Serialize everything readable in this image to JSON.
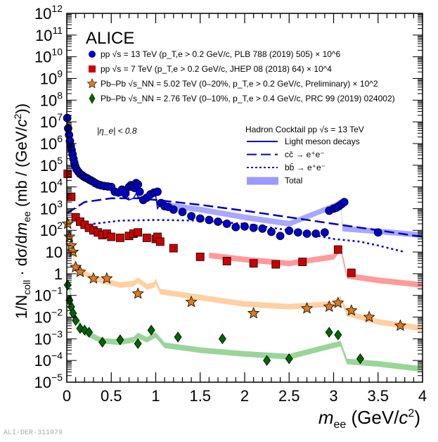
{
  "chart_data": {
    "type": "scatter",
    "title": "ALICE",
    "xlabel": "m_ee (GeV/c^2)",
    "ylabel": "1/N_coll · dσ/dm_ee (mb / (GeV/c^2))",
    "xlim": [
      0,
      4
    ],
    "ylim": [
      1e-05,
      1000000000000.0
    ],
    "yscale": "log",
    "x_ticks": [
      "0",
      "0.5",
      "1",
      "1.5",
      "2",
      "2.5",
      "3",
      "3.5",
      "4"
    ],
    "x_tick_values": [
      0,
      0.5,
      1,
      1.5,
      2,
      2.5,
      3,
      3.5,
      4
    ],
    "y_ticks": [
      "10^-5",
      "10^-4",
      "10^-3",
      "10^-2",
      "10^-1",
      "1",
      "10",
      "10^2",
      "10^3",
      "10^4",
      "10^5",
      "10^6",
      "10^7",
      "10^8",
      "10^9",
      "10^10",
      "10^11",
      "10^12"
    ],
    "y_tick_exps": [
      -5,
      -4,
      -3,
      -2,
      -1,
      0,
      1,
      2,
      3,
      4,
      5,
      6,
      7,
      8,
      9,
      10,
      11,
      12
    ],
    "annotation": "|η_e| < 0.8",
    "legend_position": "top",
    "series": [
      {
        "name": "pp √s = 13 TeV (p_T,e > 0.2 GeV/c, PLB 788 (2019) 505) × 10^6",
        "marker": "circle",
        "color": "#0000cc",
        "x": [
          0.005,
          0.015,
          0.025,
          0.035,
          0.045,
          0.055,
          0.065,
          0.075,
          0.085,
          0.095,
          0.11,
          0.13,
          0.15,
          0.17,
          0.19,
          0.21,
          0.23,
          0.25,
          0.27,
          0.29,
          0.32,
          0.35,
          0.38,
          0.42,
          0.46,
          0.5,
          0.54,
          0.58,
          0.62,
          0.66,
          0.7,
          0.72,
          0.74,
          0.76,
          0.78,
          0.8,
          0.82,
          0.86,
          0.9,
          0.94,
          0.98,
          1.02,
          1.06,
          1.1,
          1.14,
          1.2,
          1.3,
          1.4,
          1.5,
          1.6,
          1.7,
          1.8,
          1.9,
          2.0,
          2.1,
          2.2,
          2.3,
          2.4,
          2.5,
          2.6,
          2.7,
          2.8,
          2.9,
          2.95,
          3.0,
          3.03,
          3.06,
          3.09,
          3.12,
          3.5
        ],
        "y": [
          15000000.0,
          5000000.0,
          2500000.0,
          1300000.0,
          800000.0,
          500000.0,
          320000.0,
          200000.0,
          130000.0,
          90000.0,
          65000.0,
          50000.0,
          40000.0,
          35000.0,
          30000.0,
          27000.0,
          25000.0,
          22000.0,
          20000.0,
          18000.0,
          15000.0,
          13000.0,
          12000.0,
          11000.0,
          10500.0,
          10000.0,
          6000.0,
          5500.0,
          7500.0,
          5000.0,
          10000.0,
          12000.0,
          11000.0,
          9000.0,
          15000.0,
          13000.0,
          6000.0,
          2500.0,
          3200.0,
          4500.0,
          5500.0,
          6000.0,
          1800.0,
          1300.0,
          1200.0,
          900.0,
          700.0,
          450.0,
          350.0,
          300.0,
          250.0,
          200.0,
          140.0,
          150.0,
          130.0,
          120.0,
          85,
          55,
          95,
          80,
          70,
          70,
          80,
          800,
          1000,
          1100,
          1300,
          1600,
          2000,
          80
        ]
      },
      {
        "name": "pp √s = 7 TeV (p_T,e > 0.2 GeV/c, JHEP 08 (2018) 64) × 10^4",
        "marker": "square",
        "color": "#cc0000",
        "x": [
          0.01,
          0.05,
          0.1,
          0.15,
          0.2,
          0.25,
          0.3,
          0.35,
          0.4,
          0.45,
          0.5,
          0.6,
          0.7,
          0.75,
          0.8,
          0.9,
          1.0,
          1.02,
          1.05,
          1.2,
          1.5,
          1.8,
          2.1,
          2.35,
          2.65,
          3.05,
          3.2
        ],
        "y": [
          40000.0,
          3500.0,
          400.0,
          250.0,
          180.0,
          130.0,
          100.0,
          80.0,
          60.0,
          70.0,
          50.0,
          45.0,
          55.0,
          70.0,
          80.0,
          45.0,
          40.0,
          50.0,
          30.0,
          15.0,
          6,
          3.8,
          3,
          2.7,
          3.5,
          13,
          1.1
        ]
      },
      {
        "name": "Pb–Pb √s_NN = 5.02 TeV (0–20%, p_T,e > 0.2 GeV/c, Preliminary) × 10^2",
        "marker": "star",
        "color": "#e07b1a",
        "x": [
          0.01,
          0.03,
          0.05,
          0.07,
          0.1,
          0.15,
          0.3,
          0.45,
          0.8,
          1.4,
          2.1,
          2.7,
          2.95,
          3.05,
          3.2,
          3.4,
          3.75
        ],
        "y": [
          200.0,
          50.0,
          20.0,
          10.0,
          2.0,
          1.2,
          0.6,
          0.6,
          0.12,
          0.05,
          0.015,
          0.025,
          0.03,
          0.045,
          0.02,
          0.01,
          0.004
        ]
      },
      {
        "name": "Pb–Pb √s_NN = 2.76 TeV (0–10%, p_T,e > 0.4 GeV/c, PRC 99 (2019) 024002)",
        "marker": "diamond",
        "color": "#006600",
        "x": [
          0.01,
          0.03,
          0.05,
          0.07,
          0.1,
          0.15,
          0.2,
          0.25,
          0.4,
          0.6,
          0.8,
          0.95,
          1.25,
          1.75,
          2.25,
          2.5,
          2.95,
          3.05,
          3.3
        ],
        "y": [
          0.3,
          0.06,
          0.03,
          0.015,
          0.007,
          0.003,
          0.0025,
          0.002,
          0.0007,
          0.0009,
          0.0006,
          0.0025,
          0.0012,
          0.001,
          0.0001,
          0.00012,
          0.002,
          0.0015,
          0.00012
        ]
      }
    ],
    "cocktail": {
      "title": "Hadron Cocktail pp √s = 13 TeV",
      "components": [
        {
          "name": "Light meson decays",
          "style": "solid",
          "color": "#0000cc",
          "x": [
            0.05,
            0.1,
            0.2,
            0.3,
            0.4,
            0.5,
            0.6,
            0.65,
            0.7,
            0.75,
            0.78,
            0.8,
            0.9,
            0.95,
            0.98,
            1.0,
            1.02,
            1.05,
            1.1
          ],
          "y": [
            500000.0,
            100000.0,
            30000.0,
            20000.0,
            15000.0,
            10000.0,
            5000.0,
            3000.0,
            2500.0,
            3000.0,
            5000.0,
            3500.0,
            2500.0,
            5000.0,
            7000.0,
            4000.0,
            1000.0,
            1500.0,
            1200.0
          ]
        },
        {
          "name": "cc̄ → e⁺e⁻",
          "style": "dashed",
          "color": "#0000cc",
          "x": [
            0,
            0.2,
            0.5,
            0.8,
            1.0,
            1.5,
            2.0,
            2.5,
            3.0,
            3.5,
            4.0
          ],
          "y": [
            600.0,
            2000.0,
            3000.0,
            3000.0,
            2500.0,
            1500.0,
            800.0,
            400.0,
            200.0,
            100.0,
            50.0
          ]
        },
        {
          "name": "bb̄ → e⁺e⁻",
          "style": "dotted",
          "color": "#0000cc",
          "x": [
            0.3,
            0.6,
            1.0,
            1.5,
            2.0,
            2.5,
            3.0,
            3.3,
            3.5,
            3.8
          ],
          "y": [
            200.0,
            280.0,
            300.0,
            280.0,
            200.0,
            100.0,
            40.0,
            30.0,
            20.0,
            10.0
          ]
        },
        {
          "name": "Total",
          "style": "band",
          "color": "#9999ff"
        }
      ]
    },
    "bands": [
      {
        "series": "pp 13 TeV total",
        "color": "#9999ff",
        "x": [
          1.1,
          1.5,
          2.0,
          2.5,
          3.0,
          3.08,
          3.1,
          3.5,
          4.0
        ],
        "y": [
          1500.0,
          900.0,
          400.0,
          200.0,
          1300.0,
          2000.0,
          120.0,
          90.0,
          60.0
        ]
      },
      {
        "series": "pp 7 TeV cocktail",
        "color": "#ff8888",
        "x": [
          1.6,
          2.0,
          2.5,
          3.0,
          3.08,
          3.15,
          3.5,
          4.0
        ],
        "y": [
          7,
          4.5,
          3,
          6,
          14,
          0.8,
          0.5,
          0.3
        ]
      },
      {
        "series": "Pb-Pb 5.02 cocktail",
        "color": "#ffc890",
        "x": [
          0.02,
          0.1,
          0.3,
          0.6,
          0.75,
          0.8,
          0.9,
          0.98,
          1.0,
          1.05,
          1.5,
          2.0,
          2.5,
          3.0,
          3.08,
          3.15,
          3.5,
          4.0
        ],
        "y": [
          100,
          2,
          0.6,
          0.3,
          0.35,
          0.5,
          0.25,
          0.3,
          0.45,
          0.15,
          0.08,
          0.04,
          0.03,
          0.04,
          0.07,
          0.015,
          0.006,
          0.003
        ]
      },
      {
        "series": "Pb-Pb 2.76 cocktail",
        "color": "#88cc88",
        "x": [
          0.02,
          0.1,
          0.2,
          0.4,
          0.6,
          0.75,
          0.8,
          0.9,
          1.0,
          1.1,
          1.5,
          2.0,
          2.5,
          3.0,
          3.08,
          3.15,
          3.5,
          4.0
        ],
        "y": [
          0.3,
          0.01,
          0.002,
          0.0008,
          0.0007,
          0.0009,
          0.0014,
          0.0009,
          0.0015,
          0.0005,
          0.0003,
          0.0002,
          0.00015,
          0.0005,
          0.0006,
          9e-05,
          7e-05,
          4e-05
        ]
      }
    ]
  },
  "watermark": "ALI-DER-311979",
  "legend": {
    "title": "ALICE",
    "entries": [
      {
        "pre": "pp √",
        "sym": "s",
        "rest": " = 13 TeV (p",
        "sub": "T,e",
        "post": " > 0.2 GeV/c, PLB 788 (2019) 505) × 10",
        "sup": "6"
      },
      {
        "pre": "pp √",
        "sym": "s",
        "rest": " = 7 TeV (p",
        "sub": "T,e",
        "post": " > 0.2 GeV/c, JHEP 08 (2018) 64) × 10",
        "sup": "4"
      },
      {
        "pre": "Pb–Pb √",
        "sym": "s",
        "rest": "NN = 5.02 TeV (0–20%, p",
        "sub": "T,e",
        "post": " > 0.2 GeV/c, Preliminary) × 10",
        "sup": "2"
      },
      {
        "pre": "Pb–Pb √",
        "sym": "s",
        "rest": "NN = 2.76 TeV (0–10%, p",
        "sub": "T,e",
        "post": " > 0.4 GeV/c, PRC 99 (2019) 024002)",
        "sup": ""
      }
    ],
    "eta_cut": "|η_e| < 0.8",
    "cocktail_labels": [
      "Light meson decays",
      "cc̄ → e⁺e⁻",
      "bb̄ → e⁺e⁻",
      "Total"
    ]
  }
}
